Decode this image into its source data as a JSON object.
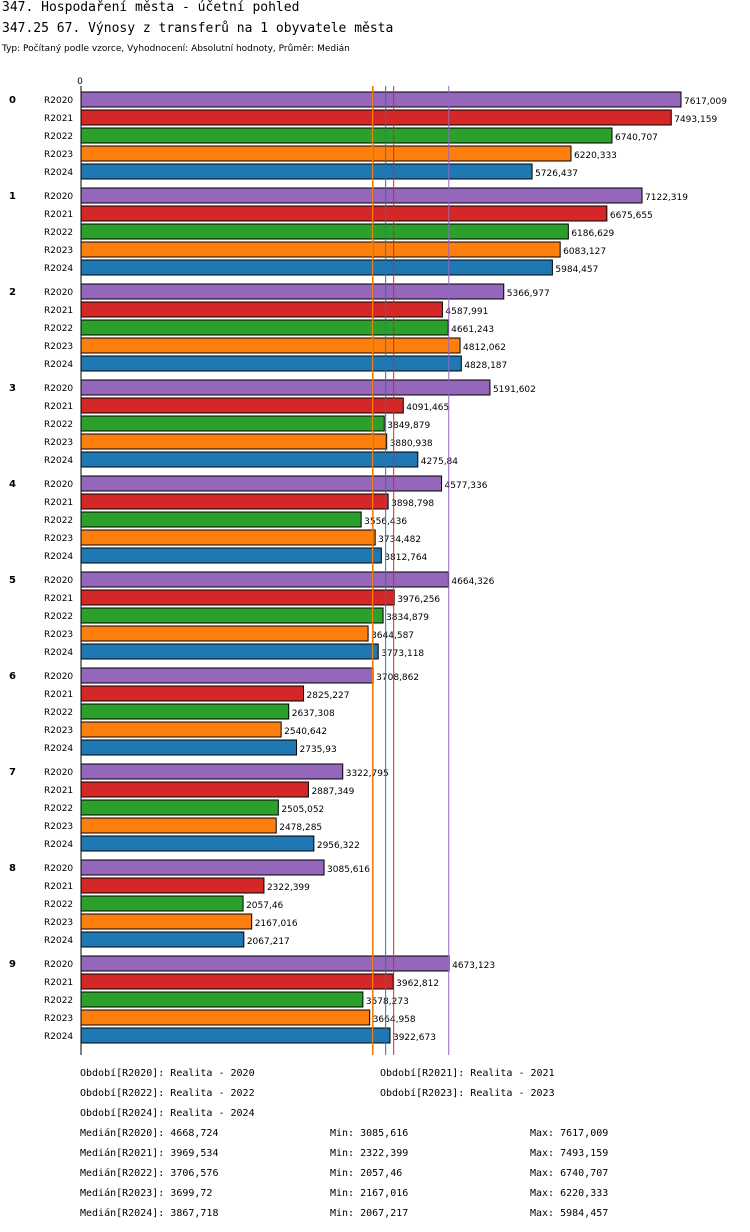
{
  "header": {
    "title": "347. Hospodaření města - účetní pohled",
    "subtitle": "347.25 67. Výnosy z transferů na 1 obyvatele města",
    "description": "Typ: Počítaný podle vzorce, Vyhodnocení: Absolutní hodnoty, Průměr: Medián"
  },
  "colors": {
    "R2020": "#9467bd",
    "R2021": "#d62728",
    "R2022": "#2ca02c",
    "R2023": "#ff7f0e",
    "R2024": "#1f77b4"
  },
  "chart_data": {
    "type": "bar",
    "orientation": "horizontal",
    "axis_zero_label": "0",
    "categories": [
      "0",
      "1",
      "2",
      "3",
      "4",
      "5",
      "6",
      "7",
      "8",
      "9"
    ],
    "series": [
      {
        "name": "R2020",
        "values": [
          7617.009,
          7122.319,
          5366.977,
          5191.602,
          4577.336,
          4664.326,
          3708.862,
          3322.795,
          3085.616,
          4673.123
        ],
        "labels": [
          "7617,009",
          "7122,319",
          "5366,977",
          "5191,602",
          "4577,336",
          "4664,326",
          "3708,862",
          "3322,795",
          "3085,616",
          "4673,123"
        ]
      },
      {
        "name": "R2021",
        "values": [
          7493.159,
          6675.655,
          4587.991,
          4091.465,
          3898.798,
          3976.256,
          2825.227,
          2887.349,
          2322.399,
          3962.812
        ],
        "labels": [
          "7493,159",
          "6675,655",
          "4587,991",
          "4091,465",
          "3898,798",
          "3976,256",
          "2825,227",
          "2887,349",
          "2322,399",
          "3962,812"
        ]
      },
      {
        "name": "R2022",
        "values": [
          6740.707,
          6186.629,
          4661.243,
          3849.879,
          3556.436,
          3834.879,
          2637.308,
          2505.052,
          2057.46,
          3578.273
        ],
        "labels": [
          "6740,707",
          "6186,629",
          "4661,243",
          "3849,879",
          "3556,436",
          "3834,879",
          "2637,308",
          "2505,052",
          "2057,46",
          "3578,273"
        ]
      },
      {
        "name": "R2023",
        "values": [
          6220.333,
          6083.127,
          4812.062,
          3880.938,
          3734.482,
          3644.587,
          2540.642,
          2478.285,
          2167.016,
          3664.958
        ],
        "labels": [
          "6220,333",
          "6083,127",
          "4812,062",
          "3880,938",
          "3734,482",
          "3644,587",
          "2540,642",
          "2478,285",
          "2167,016",
          "3664,958"
        ]
      },
      {
        "name": "R2024",
        "values": [
          5726.437,
          5984.457,
          4828.187,
          4275.84,
          3812.764,
          3773.118,
          2735.93,
          2956.322,
          2067.217,
          3922.673
        ],
        "labels": [
          "5726,437",
          "5984,457",
          "4828,187",
          "4275,84",
          "3812,764",
          "3773,118",
          "2735,93",
          "2956,322",
          "2067,217",
          "3922,673"
        ]
      }
    ],
    "median_lines": [
      {
        "name": "R2020",
        "value": 4668.724
      },
      {
        "name": "R2021",
        "value": 3969.534
      },
      {
        "name": "R2022",
        "value": 3706.576
      },
      {
        "name": "R2023",
        "value": 3699.72
      },
      {
        "name": "R2024",
        "value": 3867.718
      }
    ],
    "xlim": [
      0,
      7800
    ]
  },
  "legend": {
    "periods": [
      "Období[R2020]: Realita - 2020",
      "Období[R2021]: Realita - 2021",
      "Období[R2022]: Realita - 2022",
      "Období[R2023]: Realita - 2023",
      "Období[R2024]: Realita - 2024"
    ],
    "stats": [
      {
        "median": "Medián[R2020]: 4668,724",
        "min": "Min: 3085,616",
        "max": "Max: 7617,009"
      },
      {
        "median": "Medián[R2021]: 3969,534",
        "min": "Min: 2322,399",
        "max": "Max: 7493,159"
      },
      {
        "median": "Medián[R2022]: 3706,576",
        "min": "Min: 2057,46",
        "max": "Max: 6740,707"
      },
      {
        "median": "Medián[R2023]: 3699,72",
        "min": "Min: 2167,016",
        "max": "Max: 6220,333"
      },
      {
        "median": "Medián[R2024]: 3867,718",
        "min": "Min: 2067,217",
        "max": "Max: 5984,457"
      }
    ]
  }
}
